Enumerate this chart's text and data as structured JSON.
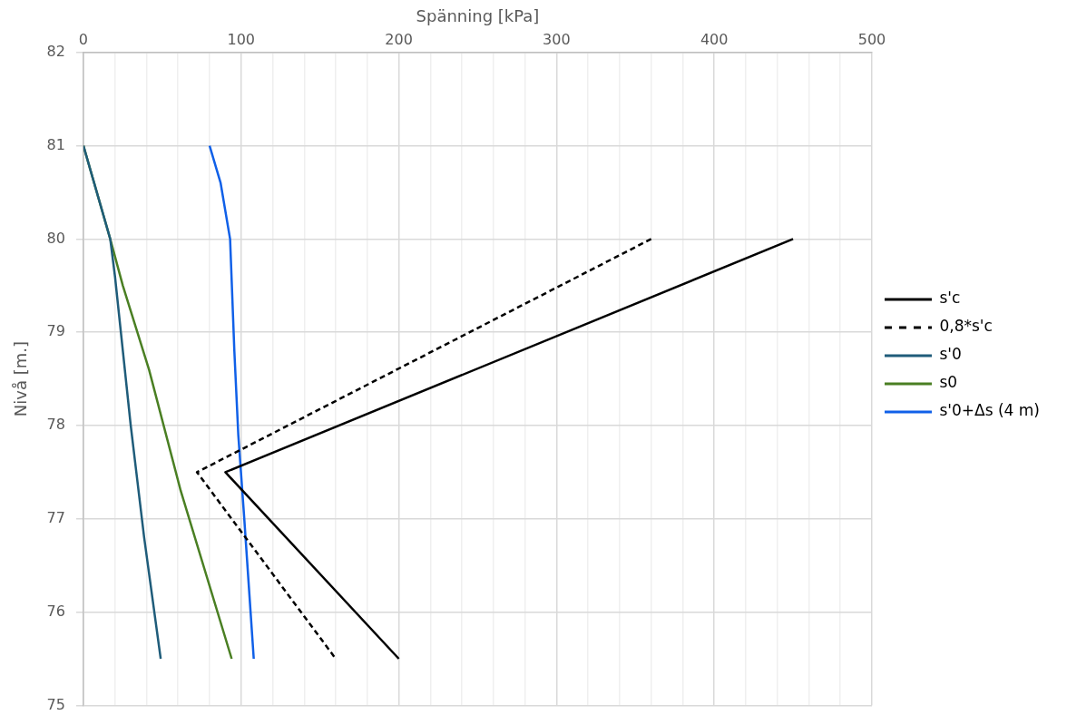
{
  "chart_data": {
    "type": "line",
    "xlabel": "Spänning [kPa]",
    "ylabel": "Nivå [m.]",
    "xlim": [
      0,
      500
    ],
    "xticks": [
      0,
      {
        "value": 20,
        "label": null
      },
      {
        "value": 40,
        "label": null
      },
      {
        "value": 60,
        "label": null
      },
      {
        "value": 80,
        "label": null
      },
      100,
      {
        "value": 120,
        "label": null
      },
      {
        "value": 140,
        "label": null
      },
      {
        "value": 160,
        "label": null
      },
      {
        "value": 180,
        "label": null
      },
      200,
      {
        "value": 220,
        "label": null
      },
      {
        "value": 240,
        "label": null
      },
      {
        "value": 260,
        "label": null
      },
      {
        "value": 280,
        "label": null
      },
      300,
      {
        "value": 320,
        "label": null
      },
      {
        "value": 340,
        "label": null
      },
      {
        "value": 360,
        "label": null
      },
      {
        "value": 380,
        "label": null
      },
      400,
      {
        "value": 420,
        "label": null
      },
      {
        "value": 440,
        "label": null
      },
      {
        "value": 460,
        "label": null
      },
      {
        "value": 480,
        "label": null
      },
      500
    ],
    "ylim": [
      75,
      82
    ],
    "yticks": [
      75,
      76,
      77,
      78,
      79,
      80,
      81,
      82
    ],
    "grid": true,
    "legend": "right",
    "marker": "none",
    "series": [
      {
        "name": "s'c",
        "color": "#000000",
        "x": [
          450,
          90,
          200
        ],
        "values": [
          80,
          77.5,
          75.5
        ]
      },
      {
        "name": "0,8*s'c",
        "color": "#000000",
        "line_style": "dashed",
        "x": [
          360,
          72,
          160
        ],
        "values": [
          80,
          77.5,
          75.5
        ]
      },
      {
        "name": "s'0",
        "color": "#1f5c7a",
        "x": [
          0,
          17,
          20,
          30,
          38.5,
          49
        ],
        "values": [
          81,
          80,
          79.6,
          78,
          76.8,
          75.5
        ]
      },
      {
        "name": "s0",
        "color": "#4a7f23",
        "x": [
          0,
          17,
          25,
          41.6,
          61.7,
          94
        ],
        "values": [
          81,
          80,
          79.5,
          78.6,
          77.3,
          75.5
        ]
      },
      {
        "name": "s'0+Δs (4 m)",
        "color": "#1060e8",
        "x": [
          80,
          87,
          93,
          95.7,
          98.2,
          102,
          106,
          108
        ],
        "values": [
          81,
          80.6,
          80,
          78.8,
          77.9,
          77,
          76,
          75.5
        ]
      }
    ]
  }
}
